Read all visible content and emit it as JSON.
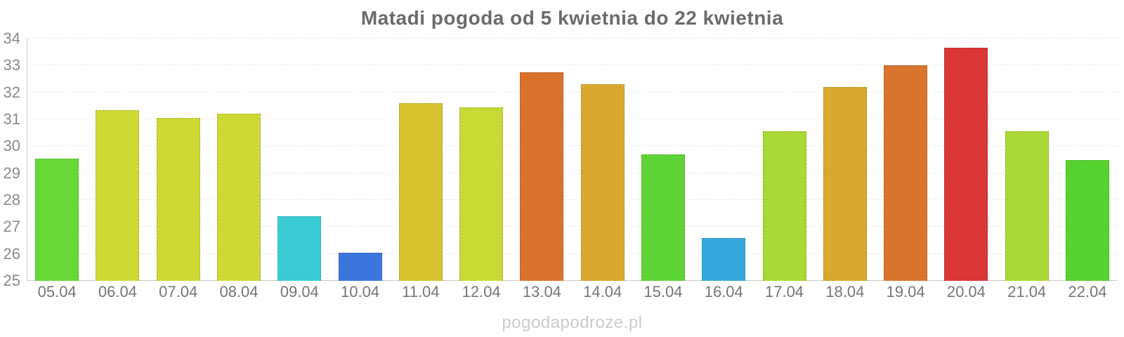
{
  "page": {
    "watermark": "pogodapodroze.pl"
  },
  "colors": {
    "background": "#ffffff",
    "title_text": "#6b6b6b",
    "axis_line": "#cccccc",
    "gridline": "#e9e9e9",
    "y_tick_text": "#8a8a8a",
    "x_tick_text": "#757575",
    "watermark_text": "#cccccc"
  },
  "chart_data": {
    "type": "bar",
    "title": "Matadi pogoda od 5 kwietnia do 22 kwietnia",
    "xlabel": "",
    "ylabel": "",
    "ylim": [
      25,
      34
    ],
    "yticks": [
      25,
      26,
      27,
      28,
      29,
      30,
      31,
      32,
      33,
      34
    ],
    "grid": true,
    "legend": false,
    "categories": [
      "05.04",
      "06.04",
      "07.04",
      "08.04",
      "09.04",
      "10.04",
      "11.04",
      "12.04",
      "13.04",
      "14.04",
      "15.04",
      "16.04",
      "17.04",
      "18.04",
      "19.04",
      "20.04",
      "21.04",
      "22.04"
    ],
    "values": [
      29.55,
      31.35,
      31.05,
      31.2,
      27.4,
      26.05,
      31.6,
      31.45,
      32.75,
      32.3,
      29.7,
      26.6,
      30.55,
      32.2,
      33.0,
      33.65,
      30.55,
      29.5
    ],
    "bar_colors": [
      "#65d836",
      "#cdd835",
      "#cdd835",
      "#cdd835",
      "#3accd5",
      "#3b76dc",
      "#d5c32f",
      "#c6d934",
      "#d8722d",
      "#d9a92f",
      "#5ed335",
      "#36a7db",
      "#a8d934",
      "#d9a92f",
      "#d8742e",
      "#da3737",
      "#a8d934",
      "#58d230"
    ],
    "bar_unit": "°C"
  }
}
